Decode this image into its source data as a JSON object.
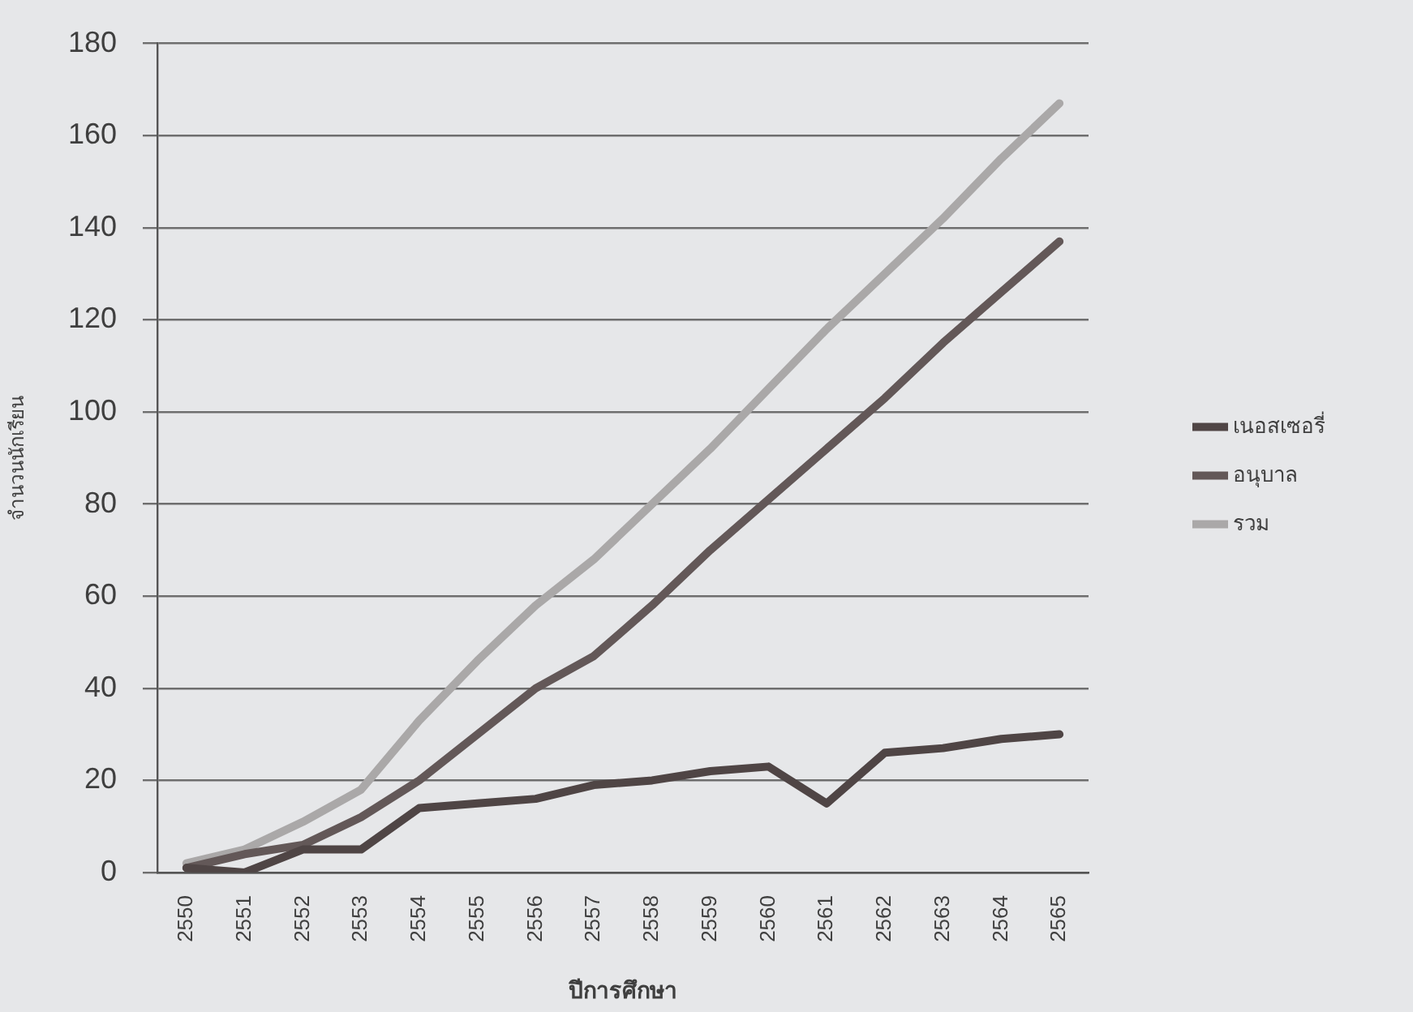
{
  "chart_data": {
    "type": "line",
    "xlabel": "ปีการศึกษา",
    "ylabel": "จำนวนนักเรียน",
    "categories": [
      "2550",
      "2551",
      "2552",
      "2553",
      "2554",
      "2555",
      "2556",
      "2557",
      "2558",
      "2559",
      "2560",
      "2561",
      "2562",
      "2563",
      "2564",
      "2565"
    ],
    "series": [
      {
        "name": "เนอสเซอรี่",
        "color": "#4f4545",
        "values": [
          1,
          0,
          5,
          5,
          14,
          15,
          16,
          19,
          20,
          22,
          23,
          15,
          26,
          27,
          29,
          30
        ]
      },
      {
        "name": "อนุบาล",
        "color": "#635858",
        "values": [
          1,
          4,
          6,
          12,
          20,
          30,
          40,
          47,
          58,
          70,
          81,
          92,
          103,
          115,
          126,
          137
        ]
      },
      {
        "name": "รวม",
        "color": "#aaa8a8",
        "values": [
          2,
          5,
          11,
          18,
          33,
          46,
          58,
          68,
          80,
          92,
          105,
          118,
          130,
          142,
          155,
          167
        ]
      }
    ],
    "ylim": [
      0,
      180
    ],
    "yticks": [
      0,
      20,
      40,
      60,
      80,
      100,
      120,
      140,
      160,
      180
    ],
    "grid": "y",
    "legend": "right",
    "marker": "none",
    "line_style": "solid"
  }
}
